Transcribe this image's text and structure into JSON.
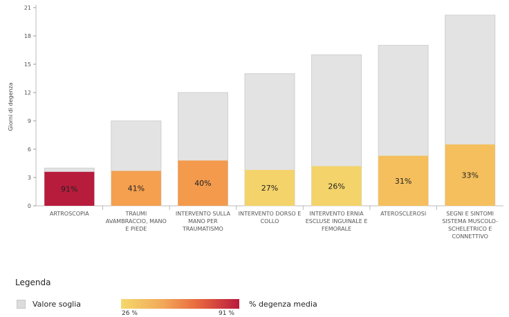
{
  "chart_data": {
    "type": "bar",
    "ylabel": "Giorni di degenza",
    "ylim": [
      0,
      21
    ],
    "yticks": [
      0,
      3,
      6,
      9,
      12,
      15,
      18,
      21
    ],
    "categories": [
      "ARTROSCOPIA",
      "TRAUMI AVAMBRACCIO, MANO E PIEDE",
      "INTERVENTO SULLA MANO PER TRAUMATISMO",
      "INTERVENTO DORSO E COLLO",
      "INTERVENTO ERNIA ESCLUSE INGUINALE E FEMORALE",
      "ATEROSCLEROSI",
      "SEGNI E SINTOMI SISTEMA MUSCOLO-SCHELETRICO E CONNETTIVO"
    ],
    "category_lines": [
      [
        "ARTROSCOPIA"
      ],
      [
        "TRAUMI",
        "AVAMBRACCIO, MANO",
        "E PIEDE"
      ],
      [
        "INTERVENTO SULLA",
        "MANO PER",
        "TRAUMATISMO"
      ],
      [
        "INTERVENTO DORSO E",
        "COLLO"
      ],
      [
        "INTERVENTO ERNIA",
        "ESCLUSE INGUINALE E",
        "FEMORALE"
      ],
      [
        "ATEROSCLEROSI"
      ],
      [
        "SEGNI E SINTOMI",
        "SISTEMA MUSCOLO-",
        "SCHELETRICO E",
        "CONNETTIVO"
      ]
    ],
    "series": [
      {
        "name": "Valore soglia",
        "values": [
          4,
          9,
          12,
          14,
          16,
          17,
          20.2
        ]
      },
      {
        "name": "% degenza media",
        "values": [
          3.6,
          3.7,
          4.8,
          3.8,
          4.2,
          5.3,
          6.5
        ],
        "labels": [
          "91%",
          "41%",
          "40%",
          "27%",
          "26%",
          "31%",
          "33%"
        ],
        "colors": [
          "#b71c3c",
          "#f4a04f",
          "#f39a4d",
          "#f4d36a",
          "#f4d36a",
          "#f4bf5c",
          "#f4bf5c"
        ]
      }
    ],
    "threshold_color": "#e3e3e3",
    "grid": false
  },
  "legend": {
    "title": "Legenda",
    "soglia_label": "Valore soglia",
    "gradient_min": "26 %",
    "gradient_max": "91 %",
    "degenza_label": "% degenza media"
  }
}
